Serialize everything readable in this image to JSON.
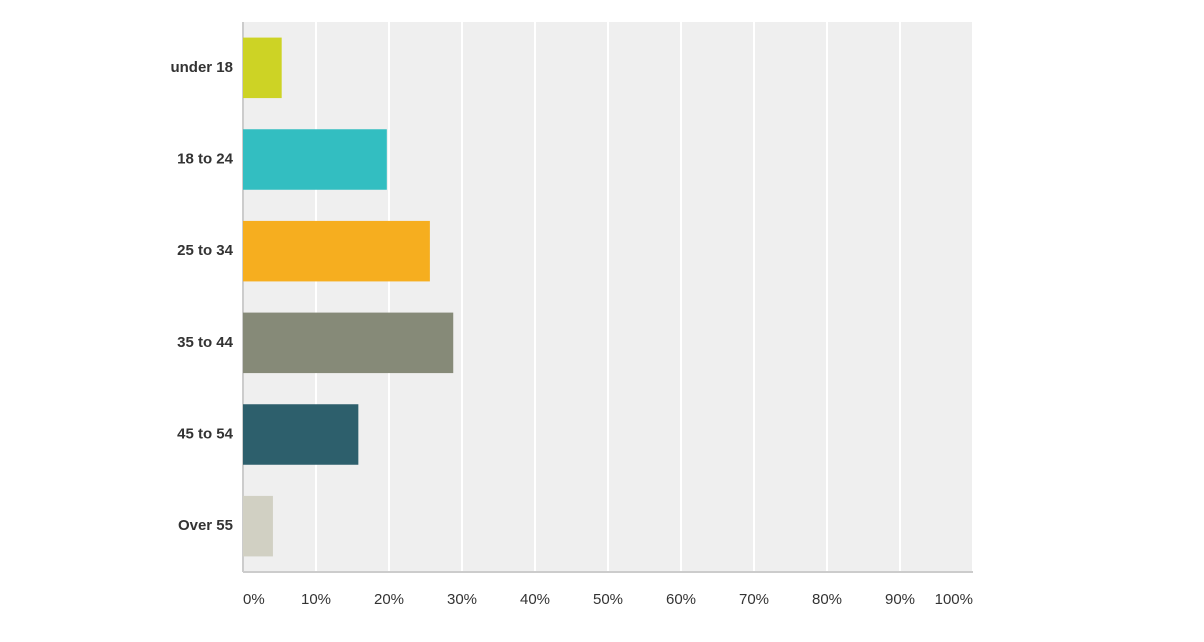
{
  "chart_data": {
    "type": "hbar",
    "categories": [
      "under 18",
      "18 to 24",
      "25 to 34",
      "35 to 44",
      "45 to 54",
      "Over 55"
    ],
    "values": [
      5.3,
      19.7,
      25.6,
      28.8,
      15.8,
      4.1
    ],
    "colors": [
      "#cdd325",
      "#33bec1",
      "#f6ae1f",
      "#868a78",
      "#2d5f6c",
      "#d1d0c3"
    ],
    "xlim": [
      0,
      100
    ],
    "xticks": [
      {
        "value": 0,
        "label": "0%"
      },
      {
        "value": 10,
        "label": "10%"
      },
      {
        "value": 20,
        "label": "20%"
      },
      {
        "value": 30,
        "label": "30%"
      },
      {
        "value": 40,
        "label": "40%"
      },
      {
        "value": 50,
        "label": "50%"
      },
      {
        "value": 60,
        "label": "60%"
      },
      {
        "value": 70,
        "label": "70%"
      },
      {
        "value": 80,
        "label": "80%"
      },
      {
        "value": 90,
        "label": "90%"
      },
      {
        "value": 100,
        "label": "100%"
      }
    ],
    "grid": true
  }
}
